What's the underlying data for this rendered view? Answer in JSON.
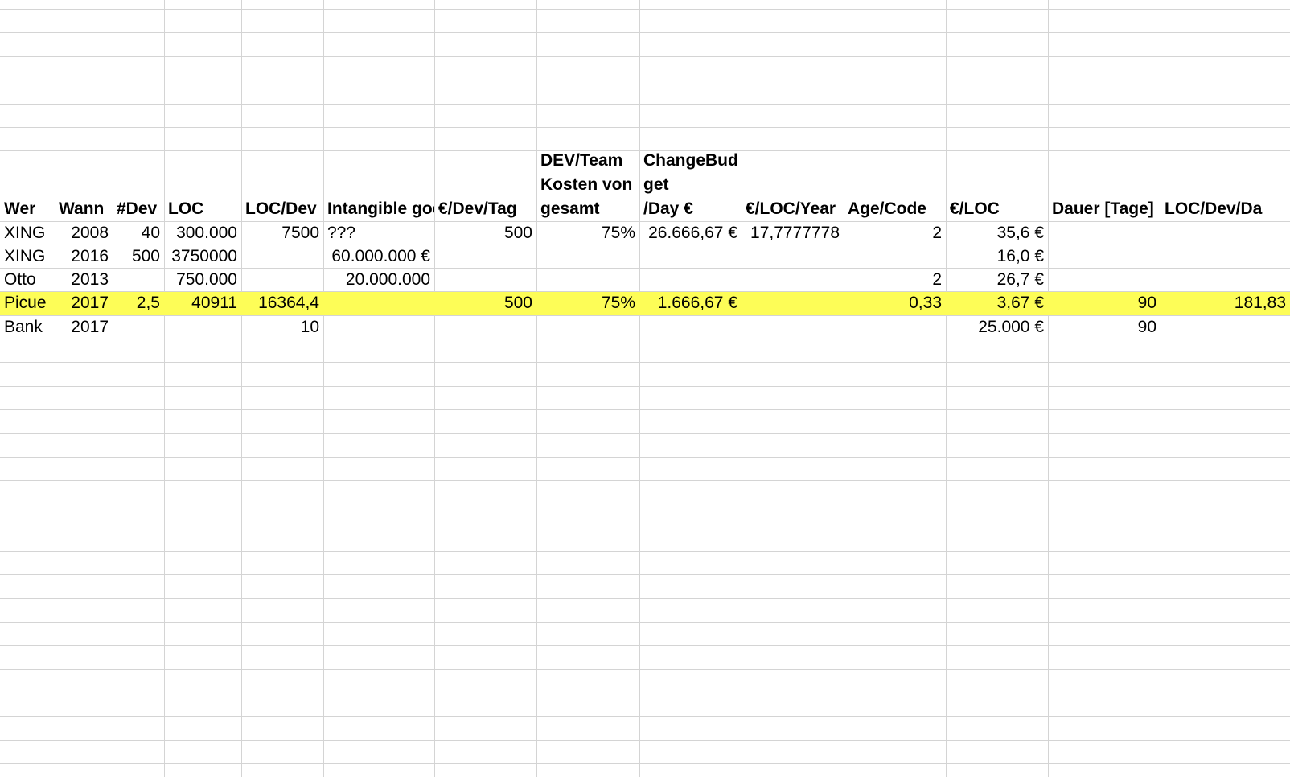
{
  "sheet": {
    "highlight_color": "#fdfd57",
    "grid_color": "#d4d4d4",
    "highlight_row_label": "Picue",
    "headers": [
      "Wer",
      "Wann",
      "#Dev",
      "LOC",
      "LOC/Dev",
      "Intangible goo",
      "€/Dev/Tag",
      "DEV/Team\nKosten von\ngesamt",
      "ChangeBud\nget\n/Day €",
      "€/LOC/Year",
      "Age/Code",
      "€/LOC",
      "Dauer [Tage]",
      "LOC/Dev/Da"
    ],
    "rows": [
      {
        "label": "XING",
        "cells": [
          "XING",
          "2008",
          "40",
          "300.000",
          "7500",
          "???",
          "500",
          "75%",
          "26.666,67 €",
          "17,7777778",
          "2",
          "35,6 €",
          "",
          ""
        ]
      },
      {
        "label": "XING",
        "cells": [
          "XING",
          "2016",
          "500",
          "3750000",
          "",
          "60.000.000 €",
          "",
          "",
          "",
          "",
          "",
          "16,0 €",
          "",
          ""
        ]
      },
      {
        "label": "Otto",
        "cells": [
          "Otto",
          "2013",
          "",
          "750.000",
          "",
          "20.000.000",
          "",
          "",
          "",
          "",
          "2",
          "26,7 €",
          "",
          ""
        ]
      },
      {
        "label": "Picue",
        "cells": [
          "Picue",
          "2017",
          "2,5",
          "40911",
          "16364,4",
          "",
          "500",
          "75%",
          "1.666,67 €",
          "",
          "0,33",
          "3,67 €",
          "90",
          "181,83"
        ]
      },
      {
        "label": "Bank",
        "cells": [
          "Bank",
          "2017",
          "",
          "",
          "10",
          "",
          "",
          "",
          "",
          "",
          "",
          "25.000 €",
          "90",
          ""
        ]
      }
    ]
  }
}
